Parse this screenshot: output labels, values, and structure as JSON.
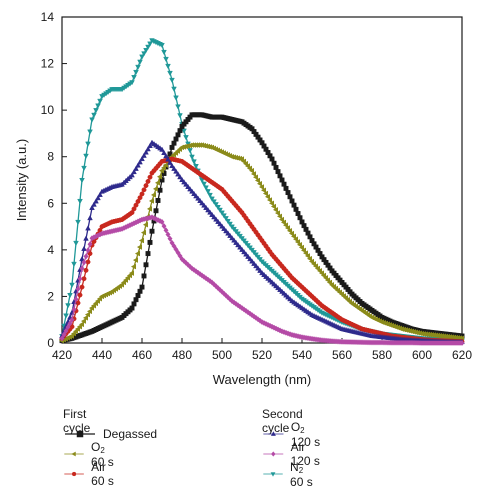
{
  "chart_data": {
    "type": "line",
    "xlabel": "Wavelength (nm)",
    "ylabel": "Intensity (a.u.)",
    "xlim": [
      420,
      620
    ],
    "ylim": [
      0,
      14
    ],
    "xticks": [
      420,
      440,
      460,
      480,
      500,
      520,
      540,
      560,
      580,
      600,
      620
    ],
    "yticks": [
      0,
      2,
      4,
      6,
      8,
      10,
      12,
      14
    ],
    "x": [
      420,
      425,
      430,
      435,
      440,
      445,
      450,
      455,
      460,
      465,
      470,
      475,
      480,
      485,
      490,
      495,
      500,
      505,
      510,
      515,
      520,
      525,
      530,
      535,
      540,
      545,
      550,
      555,
      560,
      565,
      570,
      575,
      580,
      585,
      590,
      595,
      600,
      605,
      610,
      615,
      620
    ],
    "legend_groups": [
      {
        "heading": "First cycle",
        "series_index": [
          0,
          1,
          2
        ]
      },
      {
        "heading": "Second cycle",
        "series_index": [
          3,
          4,
          5
        ]
      }
    ],
    "series": [
      {
        "name": "Degassed",
        "name_main": "Degassed",
        "name_sub": "",
        "name_rest": "",
        "color": "#1a1a1a",
        "marker": "square",
        "values": [
          0.1,
          0.2,
          0.35,
          0.5,
          0.7,
          0.9,
          1.1,
          1.5,
          2.4,
          4.8,
          7.0,
          8.4,
          9.3,
          9.8,
          9.8,
          9.7,
          9.7,
          9.6,
          9.5,
          9.2,
          8.6,
          7.9,
          7.0,
          6.1,
          5.2,
          4.4,
          3.7,
          3.1,
          2.6,
          2.1,
          1.7,
          1.4,
          1.1,
          0.9,
          0.75,
          0.6,
          0.5,
          0.45,
          0.4,
          0.35,
          0.3
        ]
      },
      {
        "name": "O2 60 s",
        "name_main": "O",
        "name_sub": "2",
        "name_rest": " 60 s",
        "color": "#8b8b1a",
        "marker": "triangle-left",
        "values": [
          0.1,
          0.3,
          0.8,
          1.5,
          2.0,
          2.2,
          2.5,
          3.0,
          4.4,
          6.1,
          7.4,
          8.0,
          8.4,
          8.5,
          8.5,
          8.4,
          8.2,
          8.0,
          7.9,
          7.4,
          6.7,
          6.0,
          5.3,
          4.7,
          4.1,
          3.5,
          3.0,
          2.5,
          2.1,
          1.7,
          1.4,
          1.1,
          0.9,
          0.75,
          0.6,
          0.5,
          0.4,
          0.35,
          0.3,
          0.25,
          0.2
        ]
      },
      {
        "name": "Air 60 s",
        "name_main": "Air 60 s",
        "name_sub": "",
        "name_rest": "",
        "color": "#c8281e",
        "marker": "circle",
        "values": [
          0.2,
          0.7,
          2.4,
          4.2,
          5.0,
          5.2,
          5.3,
          5.6,
          6.4,
          7.3,
          7.8,
          7.9,
          7.8,
          7.5,
          7.2,
          6.9,
          6.6,
          6.1,
          5.6,
          5.0,
          4.4,
          3.8,
          3.3,
          2.8,
          2.4,
          2.0,
          1.6,
          1.3,
          1.0,
          0.8,
          0.6,
          0.5,
          0.4,
          0.3,
          0.25,
          0.2,
          0.15,
          0.12,
          0.1,
          0.08,
          0.06
        ]
      },
      {
        "name": "O2 120 s",
        "name_main": "O",
        "name_sub": "2",
        "name_rest": " 120 s",
        "color": "#2e2a8c",
        "marker": "triangle-up",
        "values": [
          0.3,
          1.3,
          3.6,
          5.8,
          6.5,
          6.7,
          6.8,
          7.2,
          7.9,
          8.6,
          8.3,
          7.6,
          7.0,
          6.5,
          6.0,
          5.5,
          5.0,
          4.5,
          4.0,
          3.5,
          3.0,
          2.6,
          2.2,
          1.8,
          1.5,
          1.2,
          1.0,
          0.8,
          0.6,
          0.5,
          0.4,
          0.3,
          0.25,
          0.2,
          0.15,
          0.12,
          0.1,
          0.08,
          0.06,
          0.05,
          0.04
        ]
      },
      {
        "name": "Air 120 s",
        "name_main": "Air 120 s",
        "name_sub": "",
        "name_rest": "",
        "color": "#b44aa6",
        "marker": "diamond",
        "values": [
          0.2,
          1.0,
          3.2,
          4.5,
          4.7,
          4.8,
          4.9,
          5.1,
          5.3,
          5.4,
          5.2,
          4.3,
          3.6,
          3.2,
          2.9,
          2.6,
          2.2,
          1.8,
          1.5,
          1.2,
          0.9,
          0.7,
          0.5,
          0.35,
          0.25,
          0.18,
          0.12,
          0.08,
          0.05,
          0.04,
          0.03,
          0.02,
          0.02,
          0.01,
          0.01,
          0.01,
          0.0,
          0.0,
          0.0,
          0.0,
          0.0
        ]
      },
      {
        "name": "N2 60 s",
        "name_main": "N",
        "name_sub": "2",
        "name_rest": " 60 s",
        "color": "#1f9898",
        "marker": "triangle-down",
        "values": [
          0.3,
          2.5,
          7.0,
          9.6,
          10.6,
          10.9,
          10.9,
          11.2,
          12.3,
          13.0,
          12.8,
          11.3,
          9.4,
          8.0,
          7.0,
          6.2,
          5.6,
          5.0,
          4.5,
          4.0,
          3.5,
          3.1,
          2.7,
          2.3,
          1.9,
          1.6,
          1.3,
          1.1,
          0.9,
          0.75,
          0.6,
          0.5,
          0.4,
          0.35,
          0.3,
          0.25,
          0.2,
          0.18,
          0.15,
          0.12,
          0.1
        ]
      }
    ]
  }
}
